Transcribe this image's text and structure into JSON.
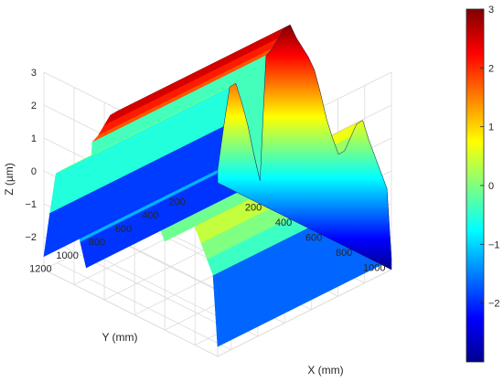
{
  "chart_data": {
    "type": "surface3d",
    "title": "",
    "xlabel": "X (mm)",
    "ylabel": "Y (mm)",
    "zlabel": "Z (µm)",
    "x_ticks": [
      "200",
      "400",
      "600",
      "800",
      "1000"
    ],
    "y_ticks": [
      "200",
      "400",
      "600",
      "800",
      "1000",
      "1200"
    ],
    "z_ticks": [
      "−2",
      "−1",
      "0",
      "1",
      "2",
      "3"
    ],
    "xlim": [
      0,
      1150
    ],
    "ylim": [
      0,
      1300
    ],
    "zlim": [
      -3,
      3
    ],
    "grid": true,
    "colormap": "jet",
    "colorbar": {
      "ticks": [
        "3",
        "2",
        "1",
        "0",
        "−1",
        "−2"
      ],
      "range": [
        -3,
        3
      ]
    },
    "surface": {
      "profile_x": [
        0,
        40,
        80,
        120,
        160,
        200,
        240,
        280,
        320,
        360,
        400,
        440,
        480,
        520,
        560,
        600,
        640,
        680,
        720,
        760,
        800,
        840,
        880,
        920,
        960,
        1000,
        1040,
        1080,
        1120,
        1150
      ],
      "profile_z": [
        -2.6,
        -1.2,
        0.1,
        0.3,
        -0.2,
        -0.8,
        -1.6,
        -2.3,
        1.6,
        1.9,
        2.3,
        2.7,
        2.9,
        2.6,
        2.4,
        2.2,
        1.9,
        1.3,
        0.6,
        0.1,
        -0.3,
        -0.1,
        0.4,
        0.9,
        1.1,
        0.6,
        0.2,
        -0.2,
        -0.6,
        -2.7
      ],
      "y_range": [
        0,
        1300
      ]
    }
  }
}
